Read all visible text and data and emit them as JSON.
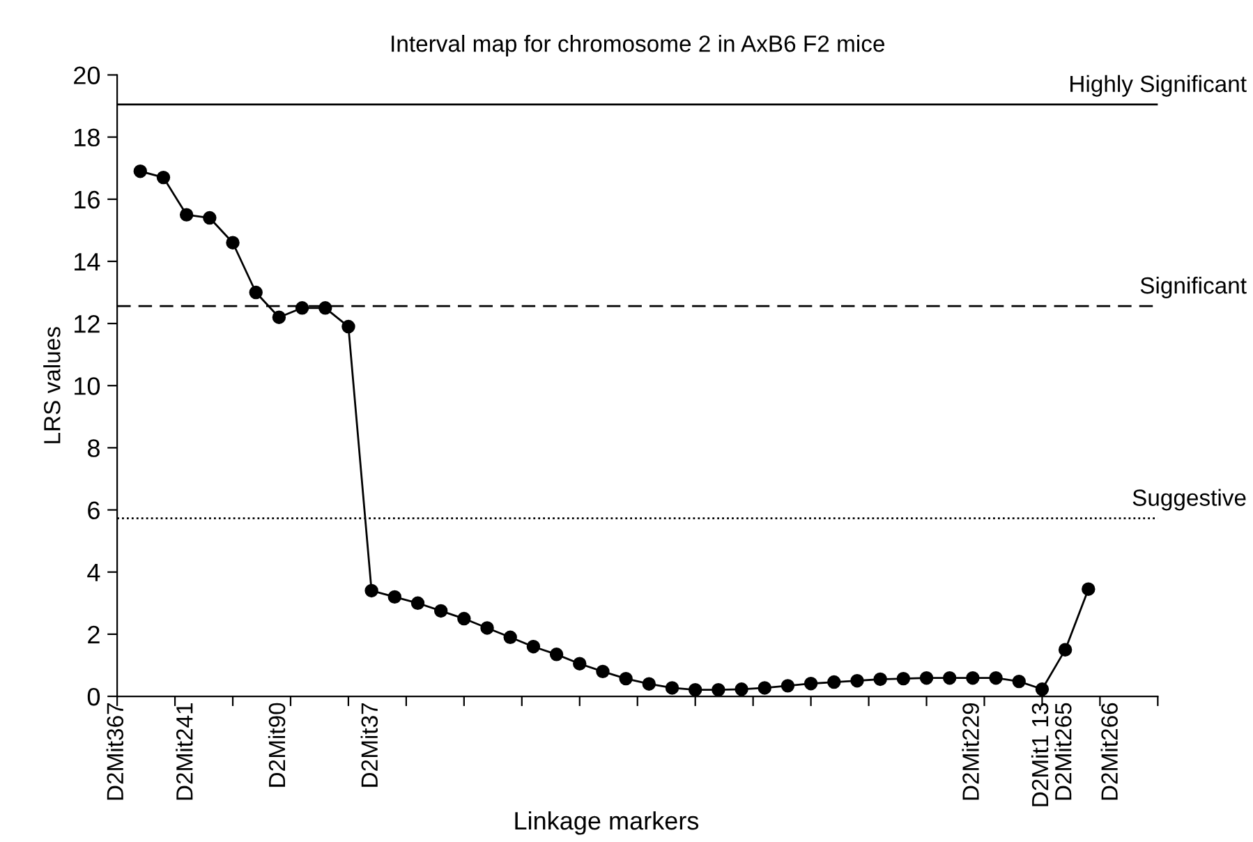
{
  "chart_data": {
    "type": "line",
    "title": "Interval map for chromosome 2 in AxB6 F2 mice",
    "xlabel": "Linkage markers",
    "ylabel": "LRS values",
    "categories": [
      "D2Mit367",
      null,
      null,
      "D2Mit241",
      null,
      null,
      null,
      "D2Mit90",
      null,
      null,
      null,
      "D2Mit37",
      null,
      null,
      null,
      null,
      null,
      null,
      null,
      null,
      null,
      null,
      null,
      null,
      null,
      null,
      null,
      null,
      null,
      null,
      null,
      null,
      null,
      null,
      null,
      null,
      null,
      "D2Mit229",
      null,
      null,
      "D2Mit1 13",
      "D2Mit265",
      null,
      "D2Mit266",
      null,
      null
    ],
    "series": [
      {
        "color": "#000000",
        "values": [
          null,
          16.9,
          16.7,
          15.5,
          15.4,
          14.6,
          13.0,
          12.2,
          12.5,
          12.5,
          11.9,
          3.4,
          3.2,
          3.0,
          2.75,
          2.5,
          2.2,
          1.9,
          1.6,
          1.35,
          1.05,
          0.8,
          0.57,
          0.4,
          0.27,
          0.21,
          0.21,
          0.23,
          0.27,
          0.34,
          0.41,
          0.46,
          0.5,
          0.55,
          0.57,
          0.59,
          0.59,
          0.59,
          0.59,
          0.48,
          0.23,
          1.5,
          3.45,
          null,
          null,
          null
        ]
      }
    ],
    "marker": "circle",
    "line_style": "solid",
    "grid": false,
    "legend": false,
    "ylim": [
      0,
      20
    ],
    "yticks": [
      0,
      2,
      4,
      6,
      8,
      10,
      12,
      14,
      16,
      18,
      20
    ],
    "ref_lines": [
      {
        "axis": "y",
        "value": 19.05,
        "label": "Highly Significant",
        "color": "#000000",
        "line_style": "solid"
      },
      {
        "axis": "y",
        "value": 12.56,
        "label": "Significant",
        "color": "#000000",
        "line_style": "dashed"
      },
      {
        "axis": "y",
        "value": 5.73,
        "label": "Suggestive",
        "color": "#000000",
        "line_style": "dotted"
      }
    ]
  }
}
